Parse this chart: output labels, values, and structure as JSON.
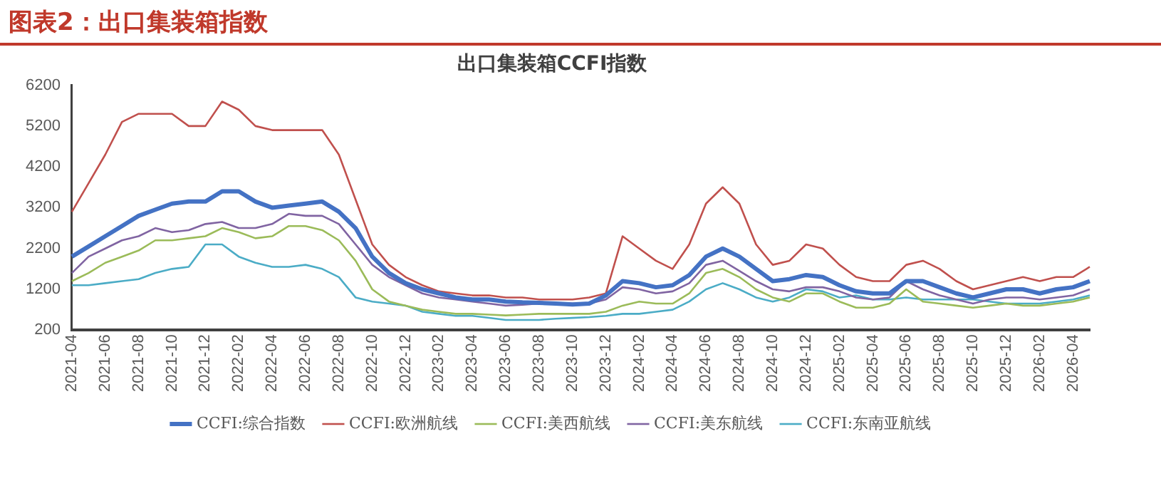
{
  "chart_data": {
    "type": "line",
    "title": "图表2：出口集装箱指数",
    "subtitle": "出口集装箱CCFI指数",
    "categories": [
      "2021-04",
      null,
      "2021-06",
      null,
      "2021-08",
      null,
      "2021-10",
      null,
      "2021-12",
      null,
      "2022-02",
      null,
      "2022-04",
      null,
      "2022-06",
      null,
      "2022-08",
      null,
      "2022-10",
      null,
      "2022-12",
      null,
      "2023-02",
      null,
      "2023-04",
      null,
      "2023-06",
      null,
      "2023-08",
      null,
      "2023-10",
      null,
      "2023-12",
      null,
      "2024-02",
      null,
      "2024-04",
      null,
      "2024-06",
      null,
      "2024-08",
      null,
      "2024-10",
      null,
      "2024-12",
      null,
      "2025-02",
      null,
      "2025-04",
      null,
      "2025-06",
      null,
      "2025-08",
      null,
      "2025-10",
      null,
      "2025-12",
      null,
      "2026-02",
      null,
      "2026-04",
      null
    ],
    "series": [
      {
        "name": "CCFI:综合指数",
        "color": "#4472c4",
        "values": [
          2000,
          2250,
          2500,
          2750,
          3000,
          3150,
          3300,
          3350,
          3350,
          3600,
          3600,
          3350,
          3200,
          3250,
          3300,
          3350,
          3100,
          2700,
          2000,
          1600,
          1350,
          1200,
          1100,
          1000,
          950,
          950,
          900,
          880,
          870,
          850,
          830,
          850,
          1050,
          1400,
          1350,
          1250,
          1300,
          1550,
          2000,
          2200,
          2000,
          1700,
          1400,
          1450,
          1550,
          1500,
          1300,
          1150,
          1100,
          1100,
          1400,
          1400,
          1250,
          1100,
          1000,
          1100,
          1200,
          1200,
          1100,
          1200,
          1250,
          1400
        ]
      },
      {
        "name": "CCFI:欧洲航线",
        "color": "#c0504d",
        "values": [
          3100,
          3800,
          4500,
          5300,
          5500,
          5500,
          5500,
          5200,
          5200,
          5800,
          5600,
          5200,
          5100,
          5100,
          5100,
          5100,
          4500,
          3400,
          2300,
          1800,
          1500,
          1300,
          1150,
          1100,
          1050,
          1050,
          1000,
          1000,
          950,
          950,
          950,
          1000,
          1100,
          2500,
          2200,
          1900,
          1700,
          2300,
          3300,
          3700,
          3300,
          2300,
          1800,
          1900,
          2300,
          2200,
          1800,
          1500,
          1400,
          1400,
          1800,
          1900,
          1700,
          1400,
          1200,
          1300,
          1400,
          1500,
          1400,
          1500,
          1500,
          1750
        ]
      },
      {
        "name": "CCFI:美西航线",
        "color": "#9bbb59",
        "values": [
          1400,
          1600,
          1850,
          2000,
          2150,
          2400,
          2400,
          2450,
          2500,
          2700,
          2600,
          2450,
          2500,
          2750,
          2750,
          2650,
          2400,
          1900,
          1200,
          900,
          800,
          700,
          650,
          600,
          600,
          580,
          560,
          580,
          600,
          600,
          600,
          600,
          650,
          800,
          900,
          850,
          850,
          1100,
          1600,
          1700,
          1500,
          1200,
          1000,
          900,
          1100,
          1100,
          900,
          750,
          750,
          850,
          1200,
          900,
          850,
          800,
          750,
          800,
          850,
          800,
          800,
          850,
          900,
          1000
        ]
      },
      {
        "name": "CCFI:美东航线",
        "color": "#8064a2",
        "values": [
          1600,
          2000,
          2200,
          2400,
          2500,
          2700,
          2600,
          2650,
          2800,
          2850,
          2700,
          2700,
          2800,
          3050,
          3000,
          3000,
          2800,
          2300,
          1800,
          1500,
          1300,
          1100,
          1000,
          950,
          900,
          850,
          800,
          820,
          850,
          850,
          850,
          850,
          950,
          1250,
          1200,
          1100,
          1150,
          1350,
          1800,
          1900,
          1650,
          1400,
          1200,
          1150,
          1250,
          1250,
          1150,
          1000,
          950,
          1000,
          1400,
          1200,
          1050,
          950,
          850,
          950,
          1000,
          1000,
          950,
          1000,
          1050,
          1200
        ]
      },
      {
        "name": "CCFI:东南亚航线",
        "color": "#4bacc6",
        "values": [
          1300,
          1300,
          1350,
          1400,
          1450,
          1600,
          1700,
          1750,
          2300,
          2300,
          2000,
          1850,
          1750,
          1750,
          1800,
          1700,
          1500,
          1000,
          900,
          850,
          800,
          650,
          600,
          550,
          550,
          500,
          450,
          450,
          450,
          480,
          500,
          520,
          550,
          600,
          600,
          650,
          700,
          900,
          1200,
          1350,
          1200,
          1000,
          900,
          1000,
          1200,
          1150,
          1000,
          1050,
          950,
          950,
          1000,
          950,
          950,
          950,
          950,
          900,
          850,
          850,
          850,
          900,
          950,
          1050
        ]
      }
    ],
    "ylim": [
      200,
      6200
    ],
    "yticks": [
      200,
      1200,
      2200,
      3200,
      4200,
      5200,
      6200
    ],
    "grid": false,
    "legend": "bottom",
    "marker": "none",
    "line_style": "solid"
  }
}
